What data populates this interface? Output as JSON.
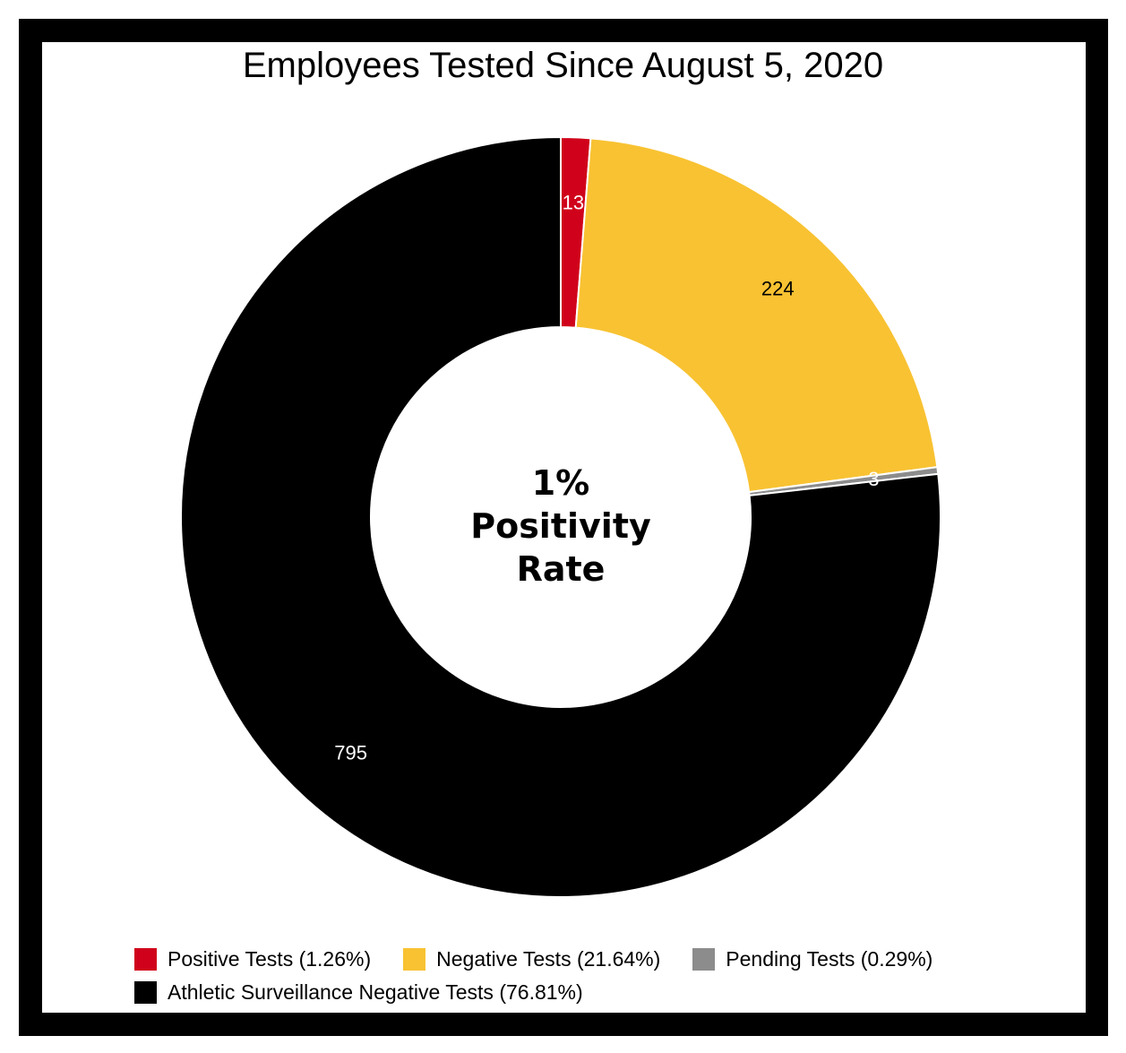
{
  "chart_data": {
    "type": "pie",
    "style": "donut",
    "title": "Employees Tested Since August 5, 2020",
    "center_label": {
      "line1": "1%",
      "line2": "Positivity",
      "line3": "Rate"
    },
    "slices": [
      {
        "label": "Positive Tests",
        "value": 13,
        "value_label": "13",
        "percent_label": "(1.26%)",
        "color": "#d0021b",
        "label_color": "#ffffff"
      },
      {
        "label": "Negative Tests",
        "value": 224,
        "value_label": "224",
        "percent_label": "(21.64%)",
        "color": "#f8c232",
        "label_color": "#000000"
      },
      {
        "label": "Pending Tests",
        "value": 3,
        "value_label": "3",
        "percent_label": "(0.29%)",
        "color": "#8c8c8c",
        "label_color": "#ffffff"
      },
      {
        "label": "Athletic Surveillance Negative Tests",
        "value": 795,
        "value_label": "795",
        "percent_label": "(76.81%)",
        "color": "#000000",
        "label_color": "#ffffff"
      }
    ],
    "legend_position": "bottom"
  }
}
